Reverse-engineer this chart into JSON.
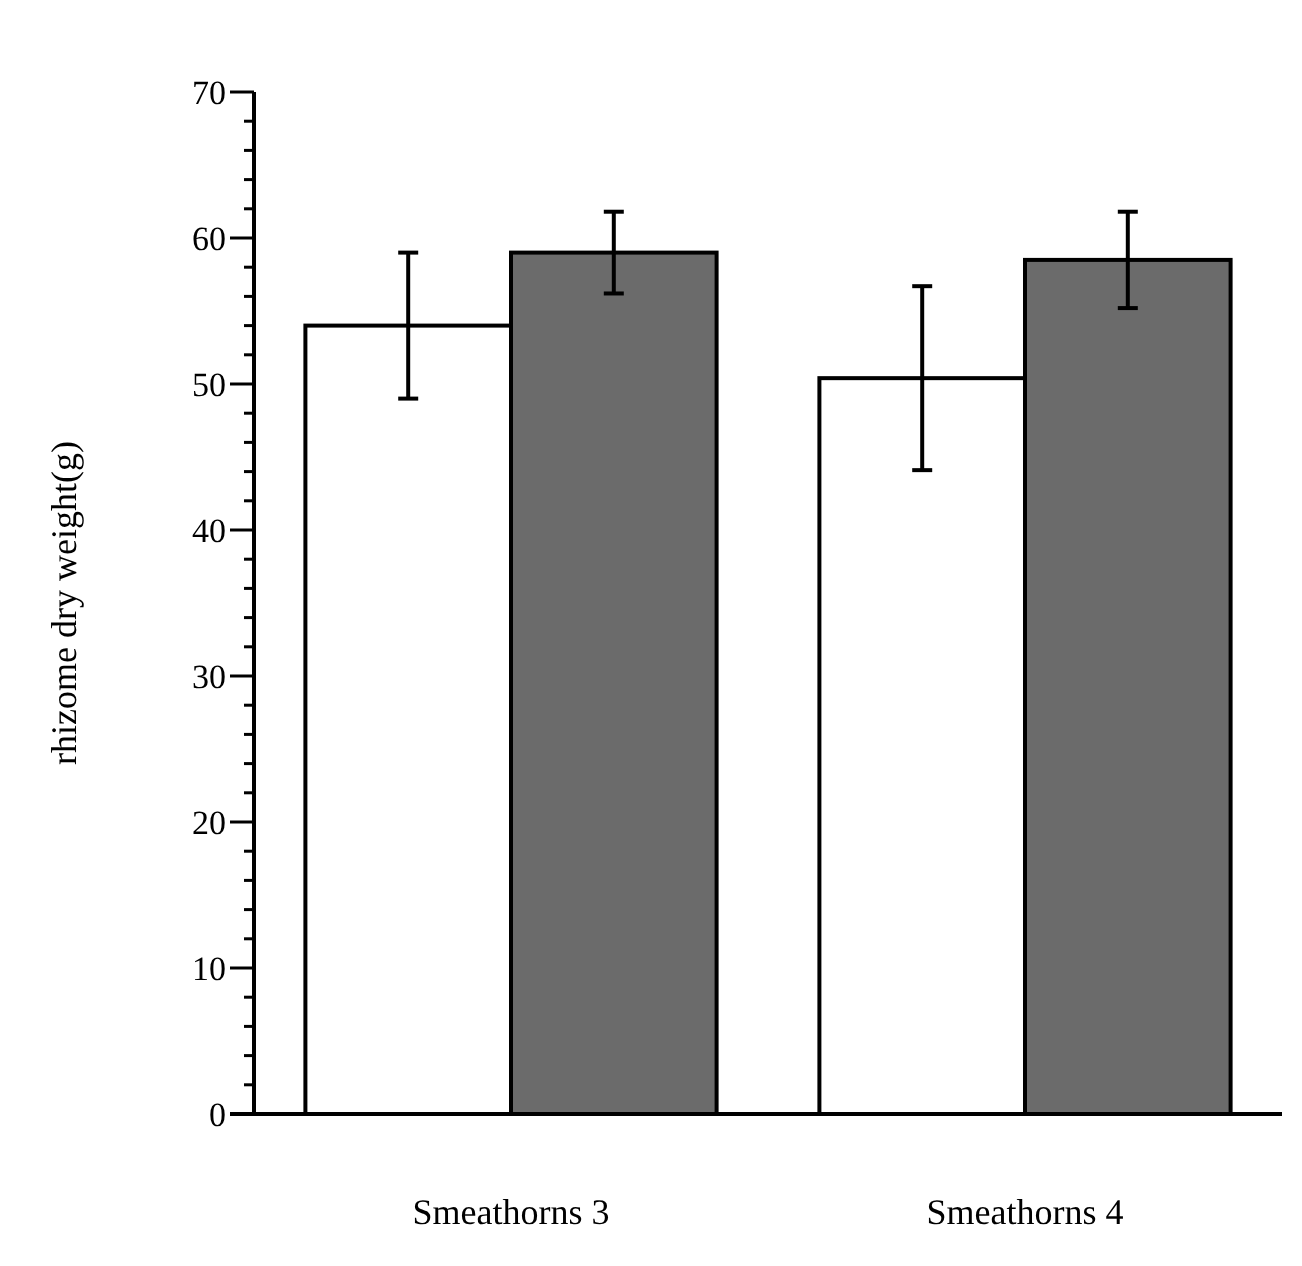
{
  "chart_data": {
    "type": "bar",
    "ylabel": "rhizome dry weight(g)",
    "categories": [
      "Smeathorns 3",
      "Smeathorns 4"
    ],
    "series": [
      {
        "color": "#ffffff",
        "values": [
          54,
          50.4
        ],
        "errors": [
          5,
          6.3
        ]
      },
      {
        "color": "#6b6b6b",
        "values": [
          59,
          58.5
        ],
        "errors": [
          2.8,
          3.3
        ]
      }
    ],
    "ylim": [
      0,
      70
    ],
    "yticks": [
      0,
      {
        "value": 2,
        "label": null
      },
      {
        "value": 4,
        "label": null
      },
      {
        "value": 6,
        "label": null
      },
      {
        "value": 8,
        "label": null
      },
      10,
      {
        "value": 12,
        "label": null
      },
      {
        "value": 14,
        "label": null
      },
      {
        "value": 16,
        "label": null
      },
      {
        "value": 18,
        "label": null
      },
      20,
      {
        "value": 22,
        "label": null
      },
      {
        "value": 24,
        "label": null
      },
      {
        "value": 26,
        "label": null
      },
      {
        "value": 28,
        "label": null
      },
      30,
      {
        "value": 32,
        "label": null
      },
      {
        "value": 34,
        "label": null
      },
      {
        "value": 36,
        "label": null
      },
      {
        "value": 38,
        "label": null
      },
      40,
      {
        "value": 42,
        "label": null
      },
      {
        "value": 44,
        "label": null
      },
      {
        "value": 46,
        "label": null
      },
      {
        "value": 48,
        "label": null
      },
      50,
      {
        "value": 52,
        "label": null
      },
      {
        "value": 54,
        "label": null
      },
      {
        "value": 56,
        "label": null
      },
      {
        "value": 58,
        "label": null
      },
      60,
      {
        "value": 62,
        "label": null
      },
      {
        "value": 64,
        "label": null
      },
      {
        "value": 66,
        "label": null
      },
      {
        "value": 68,
        "label": null
      },
      70
    ]
  }
}
